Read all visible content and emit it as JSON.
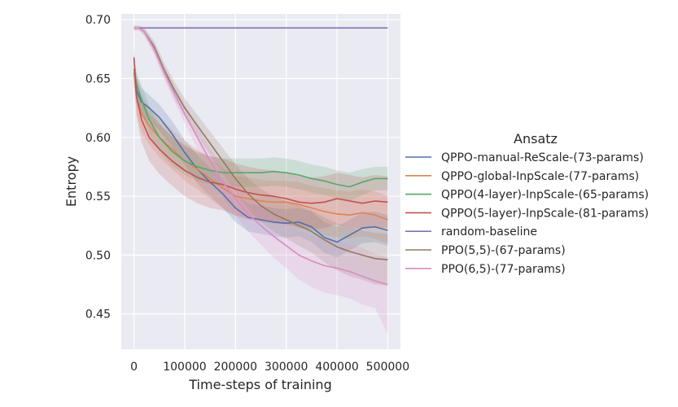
{
  "chart_data": {
    "type": "line",
    "title": "",
    "xlabel": "Time-steps of training",
    "ylabel": "Entropy",
    "xlim": [
      -25000,
      525000
    ],
    "ylim": [
      0.42,
      0.705
    ],
    "xticks": [
      0,
      100000,
      200000,
      300000,
      400000,
      500000
    ],
    "yticks": [
      0.45,
      0.5,
      0.55,
      0.6,
      0.65,
      0.7
    ],
    "grid": true,
    "legend": {
      "title": "Ansatz",
      "placement": "right"
    },
    "series": [
      {
        "name": "QPPO-manual-ReScale-(73-params)",
        "color": "#4c72b0",
        "x": [
          0,
          5000,
          15000,
          30000,
          50000,
          75000,
          100000,
          125000,
          150000,
          175000,
          200000,
          225000,
          250000,
          275000,
          300000,
          325000,
          350000,
          375000,
          400000,
          425000,
          450000,
          475000,
          500000
        ],
        "y": [
          0.655,
          0.64,
          0.63,
          0.625,
          0.617,
          0.603,
          0.587,
          0.573,
          0.562,
          0.552,
          0.54,
          0.532,
          0.53,
          0.528,
          0.527,
          0.528,
          0.524,
          0.515,
          0.511,
          0.517,
          0.523,
          0.524,
          0.521
        ],
        "upper": [
          0.665,
          0.652,
          0.642,
          0.636,
          0.628,
          0.614,
          0.598,
          0.585,
          0.574,
          0.564,
          0.552,
          0.544,
          0.542,
          0.54,
          0.539,
          0.54,
          0.537,
          0.528,
          0.524,
          0.53,
          0.536,
          0.537,
          0.534
        ],
        "lower": [
          0.645,
          0.628,
          0.618,
          0.614,
          0.606,
          0.592,
          0.576,
          0.561,
          0.55,
          0.54,
          0.528,
          0.52,
          0.518,
          0.516,
          0.515,
          0.516,
          0.511,
          0.502,
          0.498,
          0.504,
          0.51,
          0.511,
          0.508
        ]
      },
      {
        "name": "QPPO-global-InpScale-(77-params)",
        "color": "#dd8452",
        "x": [
          0,
          5000,
          15000,
          30000,
          50000,
          75000,
          100000,
          125000,
          150000,
          175000,
          200000,
          225000,
          250000,
          275000,
          300000,
          325000,
          350000,
          375000,
          400000,
          425000,
          450000,
          475000,
          500000
        ],
        "y": [
          0.655,
          0.635,
          0.62,
          0.61,
          0.6,
          0.59,
          0.58,
          0.573,
          0.565,
          0.557,
          0.55,
          0.548,
          0.546,
          0.545,
          0.545,
          0.543,
          0.54,
          0.537,
          0.535,
          0.534,
          0.536,
          0.534,
          0.53
        ],
        "upper": [
          0.668,
          0.65,
          0.636,
          0.626,
          0.617,
          0.607,
          0.597,
          0.59,
          0.582,
          0.574,
          0.567,
          0.566,
          0.564,
          0.563,
          0.563,
          0.562,
          0.559,
          0.557,
          0.555,
          0.554,
          0.556,
          0.554,
          0.55
        ],
        "lower": [
          0.642,
          0.62,
          0.604,
          0.594,
          0.583,
          0.573,
          0.563,
          0.556,
          0.548,
          0.54,
          0.533,
          0.53,
          0.528,
          0.527,
          0.527,
          0.524,
          0.521,
          0.517,
          0.515,
          0.514,
          0.516,
          0.514,
          0.51
        ]
      },
      {
        "name": "QPPO(4-layer)-InpScale-(65-params)",
        "color": "#55a868",
        "x": [
          0,
          5000,
          15000,
          30000,
          50000,
          75000,
          100000,
          125000,
          150000,
          175000,
          200000,
          225000,
          250000,
          275000,
          300000,
          325000,
          350000,
          375000,
          400000,
          425000,
          450000,
          475000,
          500000
        ],
        "y": [
          0.658,
          0.645,
          0.632,
          0.615,
          0.6,
          0.588,
          0.58,
          0.575,
          0.572,
          0.57,
          0.57,
          0.57,
          0.57,
          0.571,
          0.57,
          0.568,
          0.565,
          0.563,
          0.56,
          0.558,
          0.562,
          0.565,
          0.565
        ],
        "upper": [
          0.668,
          0.656,
          0.644,
          0.627,
          0.612,
          0.6,
          0.592,
          0.587,
          0.584,
          0.582,
          0.582,
          0.582,
          0.582,
          0.583,
          0.582,
          0.58,
          0.577,
          0.575,
          0.572,
          0.57,
          0.573,
          0.575,
          0.575
        ],
        "lower": [
          0.648,
          0.634,
          0.62,
          0.603,
          0.588,
          0.576,
          0.568,
          0.563,
          0.56,
          0.558,
          0.558,
          0.558,
          0.558,
          0.559,
          0.558,
          0.556,
          0.553,
          0.551,
          0.548,
          0.546,
          0.551,
          0.555,
          0.555
        ]
      },
      {
        "name": "QPPO(5-layer)-InpScale-(81-params)",
        "color": "#c44e52",
        "x": [
          0,
          5000,
          15000,
          30000,
          50000,
          75000,
          100000,
          125000,
          150000,
          175000,
          200000,
          225000,
          250000,
          275000,
          300000,
          325000,
          350000,
          375000,
          400000,
          425000,
          450000,
          475000,
          500000
        ],
        "y": [
          0.668,
          0.635,
          0.615,
          0.6,
          0.59,
          0.58,
          0.572,
          0.566,
          0.562,
          0.56,
          0.556,
          0.553,
          0.551,
          0.55,
          0.548,
          0.545,
          0.544,
          0.545,
          0.548,
          0.546,
          0.544,
          0.546,
          0.545
        ],
        "upper": [
          0.675,
          0.652,
          0.634,
          0.62,
          0.611,
          0.601,
          0.594,
          0.588,
          0.584,
          0.582,
          0.578,
          0.575,
          0.573,
          0.572,
          0.57,
          0.567,
          0.566,
          0.567,
          0.57,
          0.568,
          0.566,
          0.568,
          0.567
        ],
        "lower": [
          0.661,
          0.618,
          0.596,
          0.58,
          0.569,
          0.559,
          0.55,
          0.544,
          0.54,
          0.538,
          0.534,
          0.531,
          0.529,
          0.528,
          0.526,
          0.523,
          0.522,
          0.523,
          0.526,
          0.524,
          0.522,
          0.524,
          0.523
        ]
      },
      {
        "name": "random-baseline",
        "color": "#8172b3",
        "x": [
          0,
          500000
        ],
        "y": [
          0.693,
          0.693
        ]
      },
      {
        "name": "PPO(5,5)-(67-params)",
        "color": "#937860",
        "x": [
          0,
          10000,
          20000,
          40000,
          60000,
          80000,
          100000,
          125000,
          150000,
          175000,
          200000,
          225000,
          250000,
          275000,
          300000,
          325000,
          350000,
          375000,
          400000,
          425000,
          450000,
          475000,
          500000
        ],
        "y": [
          0.693,
          0.693,
          0.69,
          0.677,
          0.657,
          0.64,
          0.625,
          0.61,
          0.595,
          0.58,
          0.565,
          0.552,
          0.542,
          0.535,
          0.53,
          0.525,
          0.52,
          0.513,
          0.507,
          0.503,
          0.5,
          0.497,
          0.496
        ],
        "upper": [
          0.695,
          0.695,
          0.693,
          0.682,
          0.663,
          0.647,
          0.633,
          0.619,
          0.605,
          0.591,
          0.577,
          0.565,
          0.556,
          0.55,
          0.546,
          0.542,
          0.538,
          0.532,
          0.527,
          0.524,
          0.521,
          0.519,
          0.518
        ],
        "lower": [
          0.691,
          0.691,
          0.687,
          0.672,
          0.651,
          0.633,
          0.617,
          0.601,
          0.585,
          0.569,
          0.553,
          0.539,
          0.528,
          0.52,
          0.514,
          0.508,
          0.502,
          0.494,
          0.487,
          0.482,
          0.479,
          0.475,
          0.474
        ]
      },
      {
        "name": "PPO(6,5)-(77-params)",
        "color": "#da8bc3",
        "x": [
          0,
          10000,
          20000,
          40000,
          60000,
          80000,
          100000,
          125000,
          150000,
          175000,
          200000,
          225000,
          250000,
          275000,
          300000,
          325000,
          350000,
          375000,
          400000,
          425000,
          450000,
          475000,
          500000
        ],
        "y": [
          0.693,
          0.693,
          0.69,
          0.675,
          0.655,
          0.637,
          0.62,
          0.6,
          0.58,
          0.562,
          0.548,
          0.535,
          0.525,
          0.516,
          0.508,
          0.5,
          0.495,
          0.491,
          0.489,
          0.486,
          0.482,
          0.478,
          0.475
        ],
        "upper": [
          0.695,
          0.695,
          0.693,
          0.68,
          0.661,
          0.644,
          0.628,
          0.61,
          0.591,
          0.575,
          0.562,
          0.55,
          0.541,
          0.534,
          0.527,
          0.521,
          0.517,
          0.514,
          0.512,
          0.509,
          0.506,
          0.501,
          0.498
        ],
        "lower": [
          0.691,
          0.691,
          0.687,
          0.67,
          0.649,
          0.63,
          0.612,
          0.59,
          0.569,
          0.549,
          0.534,
          0.52,
          0.509,
          0.498,
          0.489,
          0.479,
          0.473,
          0.468,
          0.466,
          0.463,
          0.458,
          0.455,
          0.433
        ]
      }
    ]
  }
}
